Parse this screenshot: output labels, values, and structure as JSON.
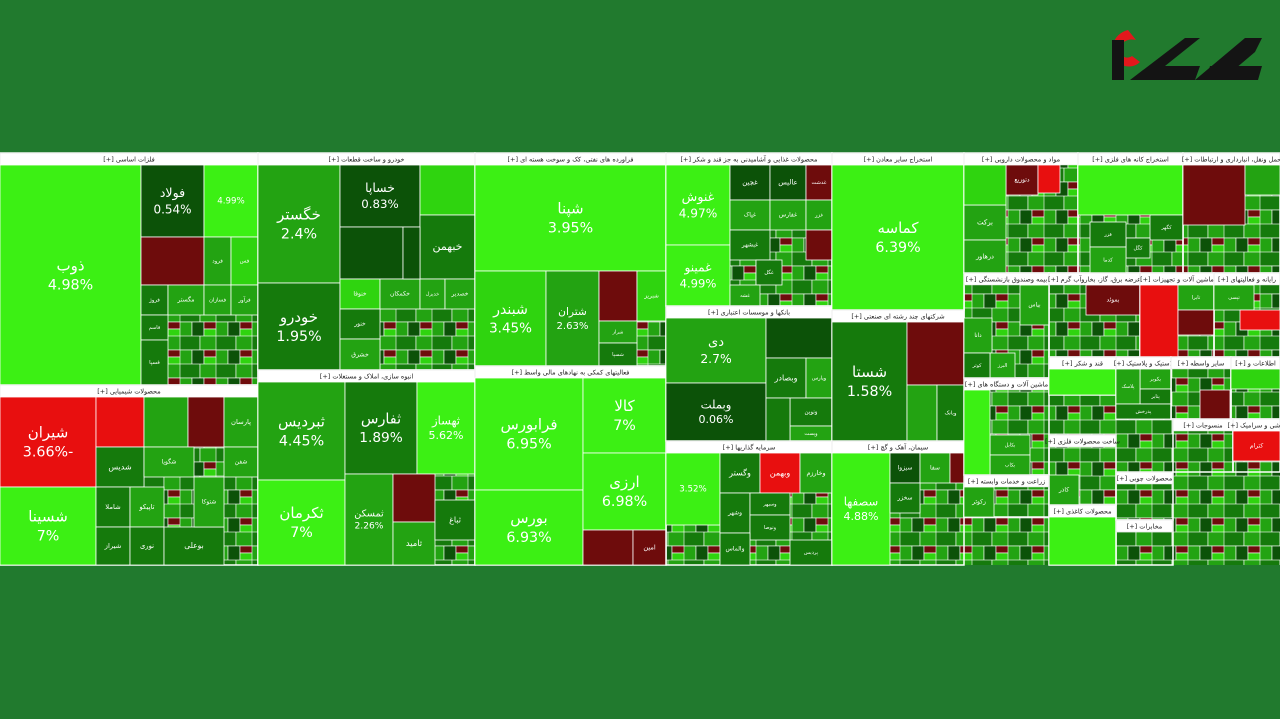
{
  "treemap": {
    "sectors": [
      {
        "title": "فلزات اساسی [+]",
        "tiles": [
          {
            "name": "ذوب",
            "change": "4.98%",
            "color": "#3cf014"
          },
          {
            "name": "فولاد",
            "change": "0.54%",
            "color": "#0c5208"
          },
          {
            "change": "4.99%",
            "color": "#3cf014"
          },
          {
            "color": "#6e0c0c"
          },
          {
            "name": "فرود",
            "color": "#23a312"
          },
          {
            "name": "فس",
            "color": "#2fd40f"
          },
          {
            "name": "فروژ",
            "color": "#157a0c"
          },
          {
            "name": "مگستر",
            "color": "#23a312"
          },
          {
            "name": "فسازان",
            "color": "#23a312"
          },
          {
            "name": "فرآور",
            "color": "#23a312"
          },
          {
            "name": "فاسم",
            "color": "#157a0c"
          },
          {
            "name": "فسپا",
            "color": "#157a0c"
          }
        ]
      },
      {
        "title": "محصولات شیمیایی [+]",
        "tiles": [
          {
            "name": "شیران",
            "change": "-3.66%",
            "color": "#e80f0f"
          },
          {
            "name": "شسینا",
            "change": "7%",
            "color": "#3cf014"
          },
          {
            "color": "#e80f0f"
          },
          {
            "color": "#23a312"
          },
          {
            "color": "#6e0c0c"
          },
          {
            "name": "پارسان",
            "color": "#23a312"
          },
          {
            "name": "شدیس",
            "color": "#157a0c"
          },
          {
            "name": "شگویا",
            "color": "#23a312"
          },
          {
            "name": "شفن",
            "color": "#23a312"
          },
          {
            "name": "شاملا",
            "color": "#157a0c"
          },
          {
            "name": "شیراز",
            "color": "#157a0c"
          },
          {
            "name": "تاپیکو",
            "color": "#23a312"
          },
          {
            "name": "نوری",
            "color": "#157a0c"
          },
          {
            "name": "بوعلی",
            "color": "#157a0c"
          },
          {
            "name": "شتوکا",
            "color": "#23a312"
          }
        ]
      },
      {
        "title": "خودرو و ساخت قطعات [+]",
        "tiles": [
          {
            "name": "خگستر",
            "change": "2.4%",
            "color": "#23a312"
          },
          {
            "name": "خودرو",
            "change": "1.95%",
            "color": "#157a0c"
          },
          {
            "name": "خساپا",
            "change": "0.83%",
            "color": "#0c5208"
          },
          {
            "color": "#2fd40f"
          },
          {
            "color": "#0c5208"
          },
          {
            "name": "خبهمن",
            "color": "#157a0c"
          },
          {
            "name": "خنوفا",
            "color": "#2fd40f"
          },
          {
            "name": "خکمکان",
            "color": "#23a312"
          },
          {
            "name": "خدیزل",
            "color": "#23a312"
          },
          {
            "name": "خصدیر",
            "color": "#23a312"
          },
          {
            "name": "خنور",
            "color": "#157a0c"
          },
          {
            "name": "خشرق",
            "color": "#23a312"
          },
          {
            "color": "#0c5208"
          }
        ]
      },
      {
        "title": "انبوه سازی، املاک و مستغلات [+]",
        "tiles": [
          {
            "name": "ثبردیس",
            "change": "4.45%",
            "color": "#23a312"
          },
          {
            "name": "ثفارس",
            "change": "1.89%",
            "color": "#157a0c"
          },
          {
            "name": "ثهساز",
            "change": "5.62%",
            "color": "#3cf014"
          },
          {
            "name": "ثکرمان",
            "change": "7%",
            "color": "#3cf014"
          },
          {
            "name": "ثمسکن",
            "change": "2.26%",
            "color": "#23a312"
          },
          {
            "color": "#6e0c0c"
          },
          {
            "name": "ثامید",
            "color": "#23a312"
          },
          {
            "name": "ثباغ",
            "color": "#157a0c"
          }
        ]
      },
      {
        "title": "فراورده های نفتی، کک و سوخت هسته ای [+]",
        "tiles": [
          {
            "name": "شپنا",
            "change": "3.95%",
            "color": "#3cf014"
          },
          {
            "name": "شبندر",
            "change": "3.45%",
            "color": "#2fd40f"
          },
          {
            "name": "شتران",
            "change": "2.63%",
            "color": "#23a312"
          },
          {
            "color": "#6e0c0c"
          },
          {
            "name": "شبریز",
            "color": "#2fd40f"
          },
          {
            "name": "شراز",
            "color": "#23a312"
          },
          {
            "name": "شسپا",
            "color": "#157a0c"
          }
        ]
      },
      {
        "title": "فعالیتهای کمکی به نهادهای مالی واسط [+]",
        "tiles": [
          {
            "name": "فرابورس",
            "change": "6.95%",
            "color": "#3cf014"
          },
          {
            "name": "بورس",
            "change": "6.93%",
            "color": "#3cf014"
          },
          {
            "name": "کالا",
            "change": "7%",
            "color": "#3cf014"
          },
          {
            "name": "ارزی",
            "change": "6.98%",
            "color": "#3cf014"
          },
          {
            "color": "#6e0c0c"
          },
          {
            "name": "امین",
            "color": "#6e0c0c"
          }
        ]
      },
      {
        "title": "محصولات غذایی و آشامیدنی به جز قند و شکر [+]",
        "tiles": [
          {
            "name": "غنوش",
            "change": "4.97%",
            "color": "#3cf014"
          },
          {
            "name": "غمینو",
            "change": "4.99%",
            "color": "#3cf014"
          },
          {
            "name": "غچین",
            "color": "#0c5208"
          },
          {
            "name": "عالیس",
            "color": "#0c5208"
          },
          {
            "name": "غدشت",
            "color": "#6e0c0c"
          },
          {
            "name": "غپاک",
            "color": "#23a312"
          },
          {
            "name": "غفارس",
            "color": "#23a312"
          },
          {
            "name": "غزر",
            "color": "#23a312"
          },
          {
            "name": "غبشهر",
            "color": "#157a0c"
          },
          {
            "name": "غگل",
            "color": "#157a0c"
          },
          {
            "name": "غشه",
            "color": "#23a312"
          },
          {
            "color": "#6e0c0c"
          }
        ]
      },
      {
        "title": "بانکها و موسسات اعتباری [+]",
        "tiles": [
          {
            "name": "دی",
            "change": "2.7%",
            "color": "#23a312"
          },
          {
            "name": "وبملت",
            "change": "0.06%",
            "color": "#0c5208"
          },
          {
            "color": "#0c5208"
          },
          {
            "name": "وبصادر",
            "color": "#157a0c"
          },
          {
            "name": "وپارس",
            "color": "#23a312"
          },
          {
            "name": "ونوین",
            "color": "#157a0c"
          },
          {
            "name": "وپست",
            "color": "#23a312"
          },
          {
            "color": "#157a0c"
          }
        ]
      },
      {
        "title": "سرمایه گذاریها [+]",
        "tiles": [
          {
            "change": "3.52%",
            "color": "#3cf014"
          },
          {
            "name": "وگستر",
            "color": "#157a0c"
          },
          {
            "name": "وبهمن",
            "color": "#e80f0f"
          },
          {
            "name": "وخارزم",
            "color": "#23a312"
          },
          {
            "name": "وشهر",
            "color": "#157a0c"
          },
          {
            "name": "وسپهر",
            "color": "#157a0c"
          },
          {
            "name": "وتوصا",
            "color": "#157a0c"
          },
          {
            "name": "والماس",
            "color": "#157a0c"
          },
          {
            "name": "پردیس",
            "color": "#157a0c"
          }
        ]
      },
      {
        "title": "استخراج سایر معادن [+]",
        "tiles": [
          {
            "name": "کماسه",
            "change": "6.39%",
            "color": "#3cf014"
          }
        ]
      },
      {
        "title": "شرکتهای چند رشته ای صنعتی [+]",
        "tiles": [
          {
            "name": "شستا",
            "change": "1.58%",
            "color": "#157a0c"
          },
          {
            "color": "#6e0c0c"
          },
          {
            "color": "#23a312"
          },
          {
            "name": "وبانک",
            "color": "#157a0c"
          }
        ]
      },
      {
        "title": "سیمان، آهک و گچ [+]",
        "tiles": [
          {
            "name": "سصفها",
            "change": "4.88%",
            "color": "#3cf014"
          },
          {
            "name": "سیزوا",
            "color": "#0c5208"
          },
          {
            "name": "سفا",
            "color": "#23a312"
          },
          {
            "name": "سخزر",
            "color": "#157a0c"
          },
          {
            "color": "#6e0c0c"
          }
        ]
      },
      {
        "title": "مواد و محصولات دارویی [+]",
        "tiles": [
          {
            "name": "برکت",
            "color": "#23a312"
          },
          {
            "name": "درهاور",
            "color": "#23a312"
          },
          {
            "name": "دتوزیع",
            "color": "#6e0c0c"
          },
          {
            "color": "#e80f0f"
          },
          {
            "color": "#2fd40f"
          }
        ]
      },
      {
        "title": "استخراج کانه های فلزی [+]",
        "tiles": [
          {
            "color": "#3cf014"
          },
          {
            "name": "کگهر",
            "color": "#157a0c"
          },
          {
            "name": "کگل",
            "color": "#157a0c"
          },
          {
            "name": "فزر",
            "color": "#157a0c"
          },
          {
            "name": "کدما",
            "color": "#23a312"
          }
        ]
      },
      {
        "title": "حمل ونقل، انبارداری و ارتباطات [+]",
        "tiles": [
          {
            "color": "#6e0c0c"
          },
          {
            "color": "#23a312"
          }
        ]
      },
      {
        "title": "بیمه وصندوق بازنشستگی [+]",
        "tiles": [
          {
            "name": "بپاس",
            "color": "#23a312"
          },
          {
            "name": "دانا",
            "color": "#23a312"
          },
          {
            "name": "البرز",
            "color": "#23a312"
          },
          {
            "name": "کوثر",
            "color": "#157a0c"
          }
        ]
      },
      {
        "title": "عرضه برق، گاز، بخاروآب گرم [+]",
        "tiles": [
          {
            "name": "بموئد",
            "color": "#6e0c0c"
          }
        ]
      },
      {
        "title": "ماشین آلات و تجهیزات [+]",
        "tiles": [
          {
            "color": "#e80f0f"
          },
          {
            "name": "تایرا",
            "color": "#23a312"
          },
          {
            "color": "#6e0c0c"
          }
        ]
      },
      {
        "title": "رایانه و فعالیتهای [+]",
        "tiles": [
          {
            "name": "تپسی",
            "color": "#23a312"
          },
          {
            "color": "#e80f0f"
          }
        ]
      },
      {
        "title": "ماشین آلات و دستگاه های [+]",
        "tiles": [
          {
            "name": "بکابل",
            "color": "#23a312"
          },
          {
            "name": "بکاب",
            "color": "#23a312"
          },
          {
            "color": "#3cf014"
          }
        ]
      },
      {
        "title": "قند و شکر [+]",
        "tiles": [
          {
            "color": "#3cf014"
          }
        ]
      },
      {
        "title": "لاستیک و پلاستیک [+]",
        "tiles": [
          {
            "name": "پکویر",
            "color": "#23a312"
          },
          {
            "name": "پتایر",
            "color": "#157a0c"
          },
          {
            "name": "پلاسک",
            "color": "#23a312"
          },
          {
            "name": "پدرخش",
            "color": "#157a0c"
          }
        ]
      },
      {
        "title": "سایر واسطه [+]",
        "tiles": [
          {
            "color": "#6e0c0c"
          }
        ]
      },
      {
        "title": "اطلاعات و [+]",
        "tiles": [
          {
            "color": "#2fd40f"
          }
        ]
      },
      {
        "title": "ساخت محصولات فلزی [+]",
        "tiles": [
          {
            "name": "کاذر",
            "color": "#23a312"
          }
        ]
      },
      {
        "title": "زراعت و خدمات وابسته [+]",
        "tiles": [
          {
            "name": "زکوثر",
            "color": "#23a312"
          }
        ]
      },
      {
        "title": "محصولات کاغذی [+]",
        "tiles": [
          {
            "color": "#3cf014"
          }
        ]
      },
      {
        "title": "محصولات چوبی [+]",
        "tiles": []
      },
      {
        "title": "مخابرات [+]",
        "tiles": []
      },
      {
        "title": "منسوجات [+]",
        "tiles": []
      },
      {
        "title": "کاشی و سرامیک [+]",
        "tiles": [
          {
            "name": "کترام",
            "color": "#e80f0f"
          }
        ]
      }
    ]
  }
}
